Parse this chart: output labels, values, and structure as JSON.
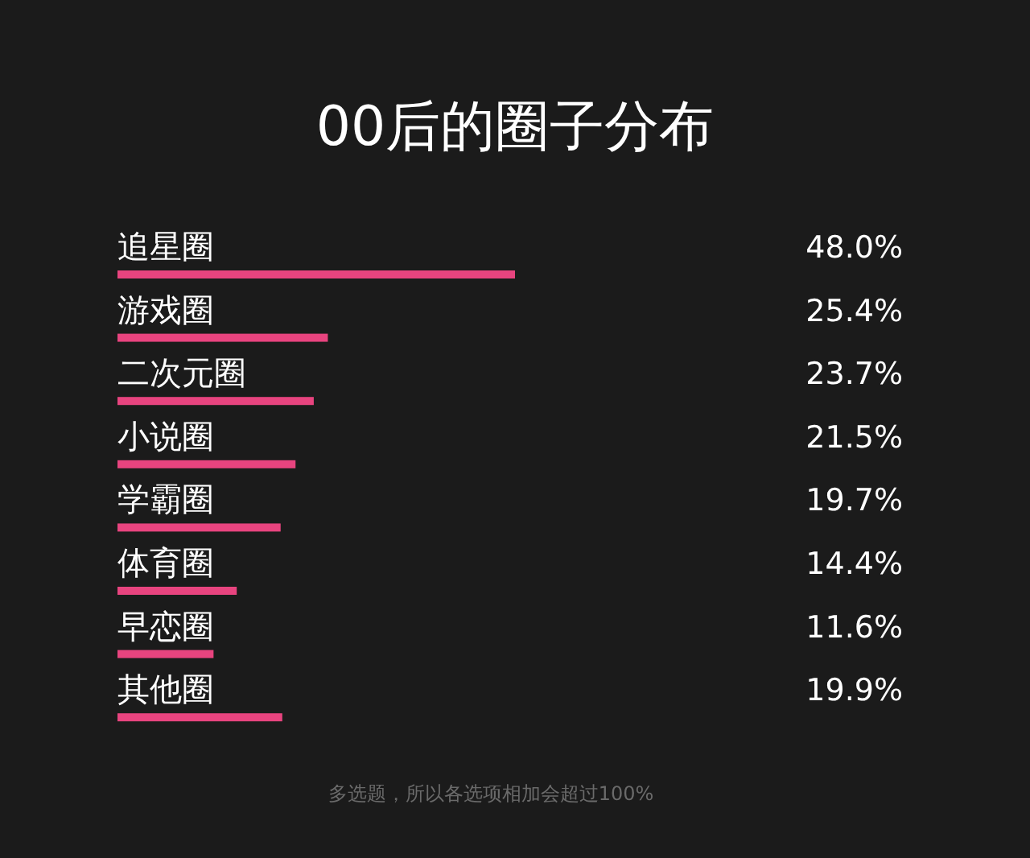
{
  "chart_data": {
    "type": "bar",
    "orientation": "horizontal",
    "title": "00后的圈子分布",
    "categories": [
      "追星圈",
      "游戏圈",
      "二次元圈",
      "小说圈",
      "学霸圈",
      "体育圈",
      "早恋圈",
      "其他圈"
    ],
    "values": [
      48.0,
      25.4,
      23.7,
      21.5,
      19.7,
      14.4,
      11.6,
      19.9
    ],
    "value_labels": [
      "48.0%",
      "25.4%",
      "23.7%",
      "21.5%",
      "19.7%",
      "14.4%",
      "11.6%",
      "19.9%"
    ],
    "color": "#e8447f",
    "annotations": [
      "多选题，所以各选项相加会超过100%"
    ]
  }
}
